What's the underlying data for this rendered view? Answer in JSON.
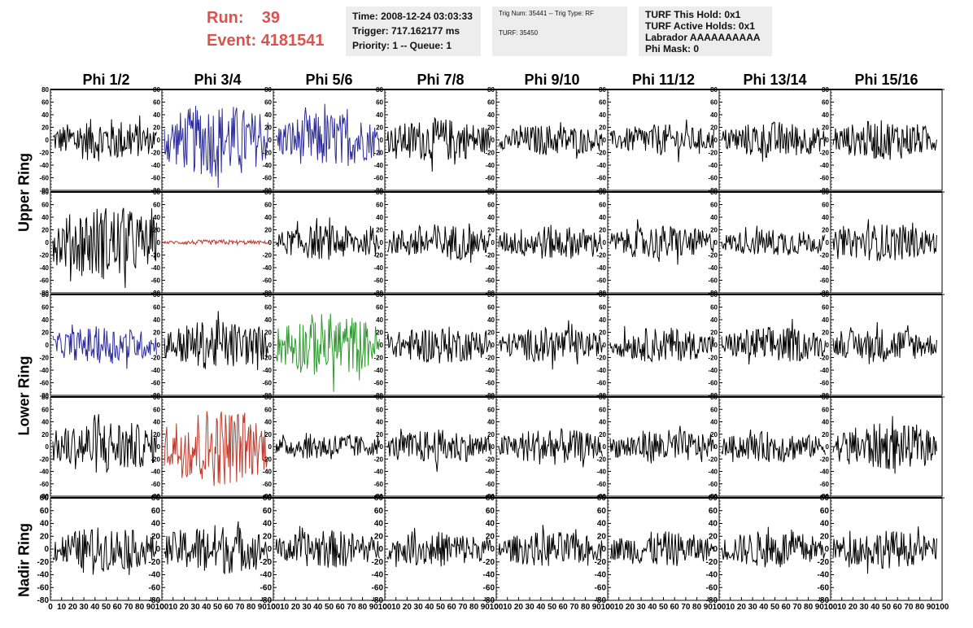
{
  "header": {
    "run_label": "Run:",
    "run_value": "39",
    "event_label": "Event:",
    "event_value": "4181541",
    "time": "Time: 2008-12-24 03:03:33",
    "trigger": "Trigger: 717.162177 ms",
    "priority": "Priority: 1 -- Queue: 1",
    "trig_num": "Trig Num: 35441 -- Trig Type: RF",
    "turf": "TURF: 35450",
    "turf_hold": "TURF This Hold: 0x1",
    "turf_active": "TURF Active Holds: 0x1",
    "labrador": "Labrador AAAAAAAAAA",
    "phi_mask": "Phi Mask: 0"
  },
  "columns": [
    "Phi 1/2",
    "Phi 3/4",
    "Phi 5/6",
    "Phi 7/8",
    "Phi 9/10",
    "Phi 11/12",
    "Phi 13/14",
    "Phi 15/16"
  ],
  "ring_labels": [
    "Upper Ring",
    "Lower Ring",
    "Nadir Ring"
  ],
  "colors": {
    "accent_run": "#d9534f",
    "blue": "#2b2b9a",
    "red": "#c0392b",
    "green": "#2e9a2e",
    "black": "#000000"
  },
  "chart_data": {
    "type": "line",
    "ylim": [
      -80,
      80
    ],
    "xlim": [
      0,
      100
    ],
    "yticks": [
      "80",
      "60",
      "40",
      "20",
      "0",
      "-20",
      "-40",
      "-60",
      "-80"
    ],
    "xticks": [
      "0",
      "10",
      "20",
      "30",
      "40",
      "50",
      "60",
      "70",
      "80",
      "90",
      "100"
    ],
    "panels": [
      [
        {
          "amp": 35,
          "color": "black"
        },
        {
          "amp": 60,
          "color": "blue"
        },
        {
          "amp": 45,
          "color": "blue"
        },
        {
          "amp": 35,
          "color": "black"
        },
        {
          "amp": 25,
          "color": "black"
        },
        {
          "amp": 25,
          "color": "black"
        },
        {
          "amp": 30,
          "color": "black"
        },
        {
          "amp": 32,
          "color": "black"
        }
      ],
      [
        {
          "amp": 60,
          "color": "black"
        },
        {
          "amp": 4,
          "color": "red"
        },
        {
          "amp": 28,
          "color": "black"
        },
        {
          "amp": 30,
          "color": "black"
        },
        {
          "amp": 28,
          "color": "black"
        },
        {
          "amp": 28,
          "color": "black"
        },
        {
          "amp": 22,
          "color": "black"
        },
        {
          "amp": 30,
          "color": "black"
        }
      ],
      [
        {
          "amp": 30,
          "color": "blue"
        },
        {
          "amp": 40,
          "color": "black"
        },
        {
          "amp": 52,
          "color": "green"
        },
        {
          "amp": 30,
          "color": "black"
        },
        {
          "amp": 28,
          "color": "black"
        },
        {
          "amp": 28,
          "color": "black"
        },
        {
          "amp": 30,
          "color": "black"
        },
        {
          "amp": 28,
          "color": "black"
        }
      ],
      [
        {
          "amp": 45,
          "color": "black"
        },
        {
          "amp": 65,
          "color": "red"
        },
        {
          "amp": 22,
          "color": "black"
        },
        {
          "amp": 28,
          "color": "black"
        },
        {
          "amp": 30,
          "color": "black"
        },
        {
          "amp": 28,
          "color": "black"
        },
        {
          "amp": 25,
          "color": "black"
        },
        {
          "amp": 38,
          "color": "black"
        }
      ],
      [
        {
          "amp": 35,
          "color": "black"
        },
        {
          "amp": 40,
          "color": "black"
        },
        {
          "amp": 30,
          "color": "black"
        },
        {
          "amp": 28,
          "color": "black"
        },
        {
          "amp": 28,
          "color": "black"
        },
        {
          "amp": 28,
          "color": "black"
        },
        {
          "amp": 30,
          "color": "black"
        },
        {
          "amp": 30,
          "color": "black"
        }
      ]
    ]
  }
}
